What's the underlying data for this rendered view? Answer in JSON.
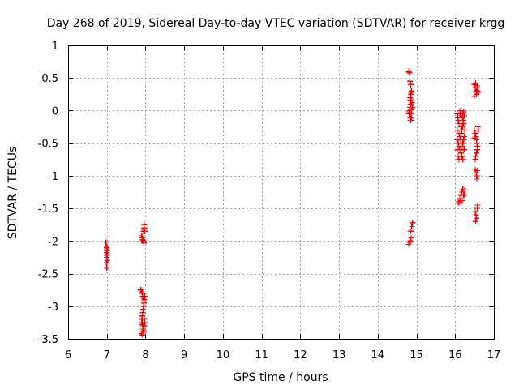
{
  "chart_data": {
    "type": "scatter",
    "title": "Day 268 of 2019, Sidereal Day-to-day VTEC variation (SDTVAR) for receiver krgg",
    "xlabel": "GPS time / hours",
    "ylabel": "SDTVAR / TECUs",
    "xlim": [
      6,
      17
    ],
    "ylim": [
      -3.5,
      1
    ],
    "xticks": [
      6,
      7,
      8,
      9,
      10,
      11,
      12,
      13,
      14,
      15,
      16,
      17
    ],
    "xtick_labels": [
      "6",
      "7",
      "8",
      "9",
      "10",
      "11",
      "12",
      "13",
      "14",
      "15",
      "16",
      "17"
    ],
    "yticks": [
      1,
      0.5,
      0,
      -0.5,
      -1,
      -1.5,
      -2,
      -2.5,
      -3,
      -3.5
    ],
    "ytick_labels": [
      "1",
      "0.5",
      "0",
      "-0.5",
      "-1",
      "-1.5",
      "-2",
      "-2.5",
      "-3",
      "-3.5"
    ],
    "grid": true,
    "marker": "+",
    "color": "#ff0000",
    "series": [
      {
        "name": "SDTVAR",
        "points": [
          [
            6.98,
            -2.02
          ],
          [
            6.99,
            -2.08
          ],
          [
            7.0,
            -2.1
          ],
          [
            7.0,
            -2.12
          ],
          [
            7.01,
            -2.15
          ],
          [
            7.0,
            -2.18
          ],
          [
            6.99,
            -2.2
          ],
          [
            7.01,
            -2.22
          ],
          [
            7.0,
            -2.25
          ],
          [
            7.02,
            -2.3
          ],
          [
            6.99,
            -2.33
          ],
          [
            7.0,
            -2.42
          ],
          [
            7.9,
            -1.92
          ],
          [
            7.92,
            -1.95
          ],
          [
            7.93,
            -1.98
          ],
          [
            7.95,
            -2.0
          ],
          [
            7.96,
            -2.03
          ],
          [
            7.95,
            -1.85
          ],
          [
            7.96,
            -1.82
          ],
          [
            7.97,
            -1.8
          ],
          [
            7.98,
            -1.85
          ],
          [
            7.97,
            -1.75
          ],
          [
            7.88,
            -2.75
          ],
          [
            7.9,
            -2.78
          ],
          [
            7.92,
            -2.8
          ],
          [
            7.93,
            -2.85
          ],
          [
            7.95,
            -2.88
          ],
          [
            7.97,
            -2.9
          ],
          [
            7.98,
            -2.85
          ],
          [
            7.96,
            -2.95
          ],
          [
            7.95,
            -3.0
          ],
          [
            7.94,
            -3.05
          ],
          [
            7.93,
            -3.1
          ],
          [
            7.92,
            -3.15
          ],
          [
            7.91,
            -3.2
          ],
          [
            7.9,
            -3.25
          ],
          [
            7.92,
            -3.28
          ],
          [
            7.94,
            -3.3
          ],
          [
            7.93,
            -3.35
          ],
          [
            7.95,
            -3.38
          ],
          [
            7.96,
            -3.4
          ],
          [
            7.9,
            -3.42
          ],
          [
            7.92,
            -3.44
          ],
          [
            7.97,
            -3.2
          ],
          [
            7.98,
            -3.25
          ],
          [
            7.99,
            -3.3
          ],
          [
            14.8,
            0.6
          ],
          [
            14.82,
            0.58
          ],
          [
            14.83,
            0.45
          ],
          [
            14.85,
            0.4
          ],
          [
            14.87,
            0.3
          ],
          [
            14.86,
            0.28
          ],
          [
            14.84,
            0.15
          ],
          [
            14.85,
            0.1
          ],
          [
            14.83,
            0.05
          ],
          [
            14.82,
            0.0
          ],
          [
            14.81,
            -0.05
          ],
          [
            14.8,
            -0.02
          ],
          [
            14.86,
            0.18
          ],
          [
            14.88,
            0.12
          ],
          [
            14.84,
            -0.1
          ],
          [
            14.85,
            -0.15
          ],
          [
            14.87,
            -0.12
          ],
          [
            14.86,
            -0.05
          ],
          [
            14.88,
            0.02
          ],
          [
            14.9,
            0.05
          ],
          [
            14.85,
            0.25
          ],
          [
            14.83,
            0.2
          ],
          [
            14.8,
            -2.05
          ],
          [
            14.82,
            -2.02
          ],
          [
            14.84,
            -2.0
          ],
          [
            14.86,
            -1.95
          ],
          [
            14.85,
            -1.85
          ],
          [
            14.88,
            -1.78
          ],
          [
            14.9,
            -1.72
          ],
          [
            16.05,
            -0.05
          ],
          [
            16.07,
            -0.1
          ],
          [
            16.08,
            -0.15
          ],
          [
            16.1,
            -0.2
          ],
          [
            16.12,
            -0.0
          ],
          [
            16.14,
            -0.05
          ],
          [
            16.15,
            -0.25
          ],
          [
            16.17,
            -0.3
          ],
          [
            16.18,
            -0.1
          ],
          [
            16.2,
            -0.05
          ],
          [
            16.22,
            -0.02
          ],
          [
            16.24,
            -0.08
          ],
          [
            16.1,
            -0.35
          ],
          [
            16.12,
            -0.4
          ],
          [
            16.14,
            -0.45
          ],
          [
            16.08,
            -0.5
          ],
          [
            16.1,
            -0.55
          ],
          [
            16.12,
            -0.6
          ],
          [
            16.15,
            -0.65
          ],
          [
            16.17,
            -0.7
          ],
          [
            16.2,
            -0.75
          ],
          [
            16.18,
            -0.55
          ],
          [
            16.2,
            -0.5
          ],
          [
            16.22,
            -0.45
          ],
          [
            16.24,
            -0.4
          ],
          [
            16.25,
            -0.3
          ],
          [
            16.22,
            -0.2
          ],
          [
            16.06,
            -0.3
          ],
          [
            16.05,
            -0.45
          ],
          [
            16.06,
            -0.6
          ],
          [
            16.08,
            -0.7
          ],
          [
            16.1,
            -0.75
          ],
          [
            16.16,
            -0.35
          ],
          [
            16.19,
            -0.25
          ],
          [
            16.21,
            -0.15
          ],
          [
            16.23,
            -0.6
          ],
          [
            16.12,
            -0.05
          ],
          [
            16.08,
            -1.4
          ],
          [
            16.1,
            -1.42
          ],
          [
            16.12,
            -1.35
          ],
          [
            16.15,
            -1.3
          ],
          [
            16.17,
            -1.25
          ],
          [
            16.2,
            -1.2
          ],
          [
            16.22,
            -1.3
          ],
          [
            16.24,
            -1.28
          ],
          [
            16.18,
            -1.38
          ],
          [
            16.14,
            -1.4
          ],
          [
            16.25,
            -1.22
          ],
          [
            16.5,
            0.4
          ],
          [
            16.52,
            0.35
          ],
          [
            16.54,
            0.3
          ],
          [
            16.55,
            0.25
          ],
          [
            16.56,
            0.35
          ],
          [
            16.58,
            0.3
          ],
          [
            16.6,
            0.28
          ],
          [
            16.53,
            0.42
          ],
          [
            16.5,
            0.22
          ],
          [
            16.57,
            0.38
          ],
          [
            16.5,
            -0.3
          ],
          [
            16.52,
            -0.35
          ],
          [
            16.54,
            -0.4
          ],
          [
            16.55,
            -0.45
          ],
          [
            16.56,
            -0.5
          ],
          [
            16.58,
            -0.55
          ],
          [
            16.6,
            -0.3
          ],
          [
            16.57,
            -0.6
          ],
          [
            16.55,
            -0.65
          ],
          [
            16.53,
            -0.7
          ],
          [
            16.52,
            -0.75
          ],
          [
            16.5,
            -0.42
          ],
          [
            16.59,
            -0.25
          ],
          [
            16.52,
            -0.9
          ],
          [
            16.54,
            -0.95
          ],
          [
            16.55,
            -1.0
          ],
          [
            16.56,
            -1.05
          ],
          [
            16.58,
            -1.0
          ],
          [
            16.57,
            -0.92
          ],
          [
            16.52,
            -1.55
          ],
          [
            16.54,
            -1.6
          ],
          [
            16.55,
            -1.65
          ],
          [
            16.53,
            -1.7
          ],
          [
            16.57,
            -1.5
          ],
          [
            16.58,
            -1.45
          ]
        ]
      }
    ]
  }
}
